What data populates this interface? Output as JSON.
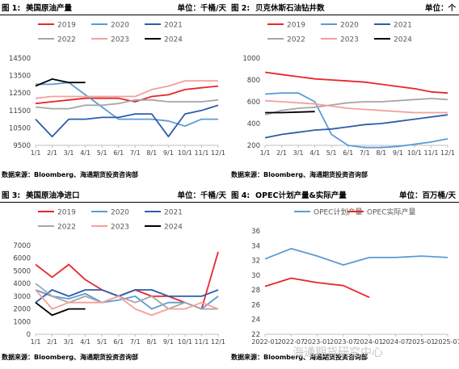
{
  "panels": [
    {
      "num": "图 1:",
      "title": "美国原油产量",
      "unit": "单位：千桶/天",
      "source": "数据来源：Bloomberg、海通期货投资咨询部"
    },
    {
      "num": "图 2:",
      "title": "贝克休斯石油钻井数",
      "unit": "单位：个",
      "source": "数据来源：Bloomberg、海通期货投资咨询部"
    },
    {
      "num": "图 3:",
      "title": "美国原油净进口",
      "unit": "单位：千桶/天",
      "source": "数据来源：Bloomberg、海通期货投资咨询部"
    },
    {
      "num": "图 4:",
      "title": "OPEC计划产量&实际产量",
      "unit": "单位：百万桶/天",
      "source": "数据来源：Bloomberg、海通期货投资咨询部"
    }
  ],
  "watermark": "海通期货研究中心",
  "colors": {
    "2019": "#e8262b",
    "2020": "#5b9bd5",
    "2021": "#2f5cac",
    "2022": "#a6a6a6",
    "2023": "#f4a09b",
    "2024": "#000000",
    "opec_plan": "#5b9bd5",
    "opec_actual": "#e8262b"
  },
  "chart_data": [
    {
      "type": "line",
      "categories": [
        "1/1",
        "2/1",
        "3/1",
        "4/1",
        "5/1",
        "6/1",
        "7/1",
        "8/1",
        "9/1",
        "10/1",
        "11/1",
        "12/1"
      ],
      "ylim": [
        9500,
        14500
      ],
      "yticks": [
        "9500",
        "10500",
        "11500",
        "12500",
        "13500",
        "14500"
      ],
      "series": [
        {
          "name": "2019",
          "color": "#e8262b",
          "values": [
            11900,
            12000,
            12100,
            12200,
            12200,
            12200,
            12000,
            12300,
            12400,
            12700,
            12800,
            12900
          ]
        },
        {
          "name": "2020",
          "color": "#5b9bd5",
          "values": [
            13000,
            13000,
            13100,
            12400,
            11700,
            11000,
            11000,
            11000,
            10900,
            10600,
            11000,
            11000
          ]
        },
        {
          "name": "2021",
          "color": "#2f5cac",
          "values": [
            11000,
            10000,
            11000,
            11000,
            11100,
            11100,
            11300,
            11300,
            10000,
            11300,
            11500,
            11800
          ]
        },
        {
          "name": "2022",
          "color": "#a6a6a6",
          "values": [
            11700,
            11600,
            11600,
            11800,
            11800,
            11900,
            12100,
            12100,
            12000,
            12000,
            12000,
            12100
          ]
        },
        {
          "name": "2023",
          "color": "#f4a09b",
          "values": [
            12200,
            12300,
            12300,
            12300,
            12300,
            12300,
            12300,
            12700,
            12900,
            13200,
            13200,
            13200
          ]
        },
        {
          "name": "2024",
          "color": "#000000",
          "values": [
            12900,
            13300,
            13100,
            13100,
            null,
            null,
            null,
            null,
            null,
            null,
            null,
            null
          ]
        }
      ]
    },
    {
      "type": "line",
      "categories": [
        "1/1",
        "2/1",
        "3/1",
        "4/1",
        "5/1",
        "6/1",
        "7/1",
        "8/1",
        "9/1",
        "10/1",
        "11/1",
        "12/1"
      ],
      "ylim": [
        200,
        1000
      ],
      "yticks": [
        "200",
        "400",
        "600",
        "800",
        "1000"
      ],
      "series": [
        {
          "name": "2019",
          "color": "#e8262b",
          "values": [
            870,
            850,
            830,
            810,
            800,
            790,
            780,
            760,
            740,
            720,
            690,
            680
          ]
        },
        {
          "name": "2020",
          "color": "#5b9bd5",
          "values": [
            670,
            680,
            680,
            600,
            300,
            200,
            180,
            180,
            190,
            210,
            230,
            260
          ]
        },
        {
          "name": "2021",
          "color": "#2f5cac",
          "values": [
            270,
            300,
            320,
            340,
            350,
            370,
            390,
            400,
            420,
            440,
            460,
            480
          ]
        },
        {
          "name": "2022",
          "color": "#a6a6a6",
          "values": [
            480,
            520,
            540,
            550,
            570,
            590,
            600,
            600,
            610,
            620,
            630,
            620
          ]
        },
        {
          "name": "2023",
          "color": "#f4a09b",
          "values": [
            610,
            600,
            590,
            580,
            560,
            540,
            530,
            520,
            510,
            500,
            500,
            500
          ]
        },
        {
          "name": "2024",
          "color": "#000000",
          "values": [
            500,
            500,
            505,
            510,
            null,
            null,
            null,
            null,
            null,
            null,
            null,
            null
          ]
        }
      ]
    },
    {
      "type": "line",
      "categories": [
        "1/1",
        "2/1",
        "3/1",
        "4/1",
        "5/1",
        "6/1",
        "7/1",
        "8/1",
        "9/1",
        "10/1",
        "11/1",
        "12/1"
      ],
      "ylim": [
        0,
        7000
      ],
      "yticks": [
        "0",
        "1000",
        "2000",
        "3000",
        "4000",
        "5000",
        "6000",
        "7000"
      ],
      "series": [
        {
          "name": "2019",
          "color": "#e8262b",
          "values": [
            5500,
            4500,
            5500,
            4300,
            3500,
            3000,
            3500,
            3000,
            3000,
            2500,
            2000,
            6500
          ]
        },
        {
          "name": "2020",
          "color": "#5b9bd5",
          "values": [
            3500,
            3000,
            2800,
            3200,
            2500,
            2700,
            3000,
            2000,
            2500,
            2500,
            2000,
            3000
          ]
        },
        {
          "name": "2021",
          "color": "#2f5cac",
          "values": [
            2500,
            3500,
            3000,
            3500,
            3500,
            3000,
            3500,
            3500,
            3000,
            3000,
            3000,
            3500
          ]
        },
        {
          "name": "2022",
          "color": "#a6a6a6",
          "values": [
            4000,
            3000,
            2500,
            3000,
            2500,
            3000,
            2500,
            3000,
            2000,
            2500,
            2000,
            2000
          ]
        },
        {
          "name": "2023",
          "color": "#f4a09b",
          "values": [
            3500,
            2000,
            2500,
            2500,
            2500,
            3000,
            2000,
            1500,
            2000,
            2000,
            2500,
            2000
          ]
        },
        {
          "name": "2024",
          "color": "#000000",
          "values": [
            2500,
            1500,
            2000,
            2000,
            null,
            null,
            null,
            null,
            null,
            null,
            null,
            null
          ]
        }
      ]
    },
    {
      "type": "line",
      "categories": [
        "2022-01",
        "2022-07",
        "2023-01",
        "2023-07",
        "2024-01",
        "2024-07",
        "2025-01",
        "2025-07"
      ],
      "ylim": [
        22,
        36
      ],
      "yticks": [
        "22",
        "24",
        "26",
        "28",
        "30",
        "32",
        "34",
        "36"
      ],
      "series": [
        {
          "name": "OPEC计划产量",
          "color": "#5b9bd5",
          "values": [
            32.2,
            33.6,
            32.6,
            31.4,
            32.4,
            32.4,
            32.6,
            32.4
          ]
        },
        {
          "name": "OPEC实际产量",
          "color": "#e8262b",
          "values": [
            28.5,
            29.6,
            29.0,
            28.6,
            27.0,
            null,
            null,
            null
          ]
        }
      ]
    }
  ]
}
